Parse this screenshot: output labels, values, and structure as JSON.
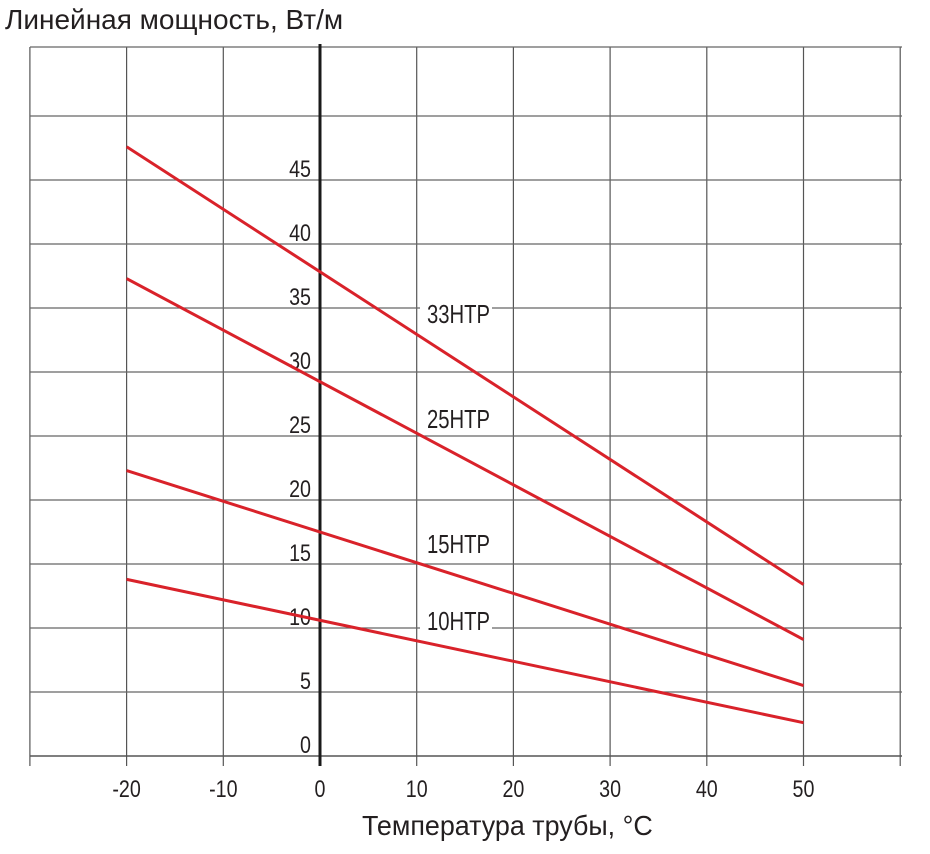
{
  "chart_data": {
    "type": "line",
    "title": "Линейная мощность, Вт/м",
    "xlabel": "Температура трубы, °C",
    "ylabel": "Линейная мощность, Вт/м",
    "xlim": [
      -30,
      60
    ],
    "ylim": [
      0,
      57.5
    ],
    "x_ticks": [
      -20,
      -10,
      0,
      10,
      20,
      30,
      40,
      50
    ],
    "y_ticks": [
      0,
      5,
      10,
      15,
      20,
      25,
      30,
      35,
      40,
      45
    ],
    "grid": true,
    "legend": "inline labels",
    "x": [
      -20,
      50
    ],
    "series": [
      {
        "name": "33HTP",
        "values": [
          47.6,
          13.4
        ],
        "value_at_0": 37.8
      },
      {
        "name": "25HTP",
        "values": [
          37.3,
          9.1
        ],
        "value_at_0": 29.5
      },
      {
        "name": "15HTP",
        "values": [
          22.3,
          5.5
        ],
        "value_at_0": 17.2
      },
      {
        "name": "10HTP",
        "values": [
          13.8,
          2.6
        ],
        "value_at_0": 10.6
      }
    ],
    "line_color": "#d9222a"
  },
  "chart": {
    "title": "Линейная мощность, Вт/м",
    "xlabel": "Температура трубы, °C",
    "series_labels": [
      "33HTP",
      "25HTP",
      "15HTP",
      "10HTP"
    ]
  }
}
